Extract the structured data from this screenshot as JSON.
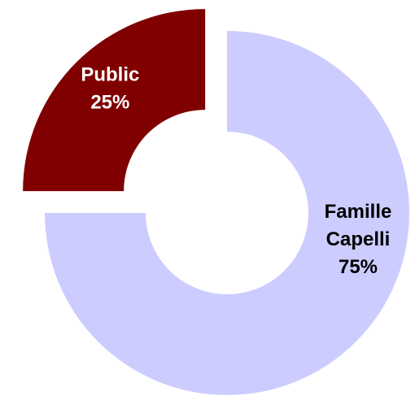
{
  "chart_data": {
    "type": "pie",
    "variant": "donut",
    "title": "",
    "slices": [
      {
        "name": "Public",
        "value": 25,
        "value_label": "25%",
        "color": "#800000",
        "text_color": "#ffffff",
        "exploded": true
      },
      {
        "name": "Famille Capelli",
        "name_lines": [
          "Famille",
          "Capelli"
        ],
        "value": 75,
        "value_label": "75%",
        "color": "#ccccff",
        "text_color": "#000000",
        "exploded": false
      }
    ],
    "start_angle": "12 o'clock",
    "direction": "counter-clockwise",
    "legend": "none"
  }
}
